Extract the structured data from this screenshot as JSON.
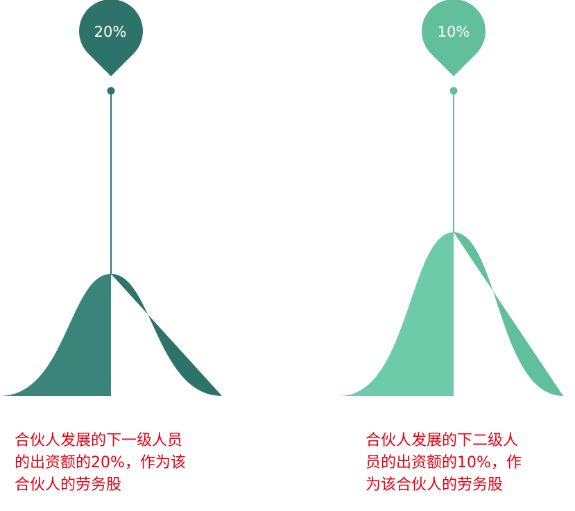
{
  "colors": {
    "left_dark": "#2e7369",
    "left_light": "#3a8479",
    "right_dark": "#62bf9b",
    "right_light": "#6ecbaa",
    "caption_text": "#e60012"
  },
  "items": [
    {
      "pin_label": "20%",
      "value": 20,
      "caption_lines": [
        "合伙人发展的下一级人员",
        "的出资额的20%，作为该",
        "合伙人的劳务股"
      ]
    },
    {
      "pin_label": "10%",
      "value": 10,
      "caption_lines": [
        "合伙人发展的下二级人",
        "员的出资额的10%，作",
        "为该合伙人的劳务股"
      ]
    }
  ]
}
